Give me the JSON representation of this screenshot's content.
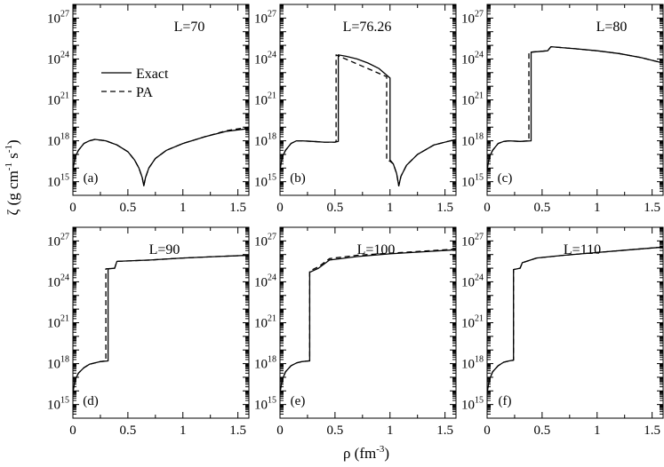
{
  "figure": {
    "ylabel": "ζ (g cm⁻¹ s⁻¹)",
    "xlabel": "ρ (fm⁻³)",
    "ylabel_parts": [
      "ζ (g cm",
      "-1",
      " s",
      "-1",
      ")"
    ],
    "xlabel_parts": [
      "ρ (fm",
      "-3",
      ")"
    ],
    "legend": {
      "entries": [
        "Exact",
        "PA"
      ],
      "placement": "panel (a), upper-left"
    }
  },
  "chart_data": [
    {
      "type": "line",
      "panel": "(a)",
      "title": "L=70",
      "xlim": [
        0,
        1.6
      ],
      "ylim": [
        14,
        28
      ],
      "yscale": "log",
      "xticks": [
        "0",
        "0.5",
        "1",
        "1.5"
      ],
      "yticks": [
        "15",
        "18",
        "21",
        "24",
        "27"
      ],
      "series": [
        {
          "name": "Exact",
          "style": "solid",
          "x": [
            0,
            0.02,
            0.05,
            0.1,
            0.15,
            0.2,
            0.3,
            0.4,
            0.5,
            0.56,
            0.6,
            0.63,
            0.645,
            0.66,
            0.69,
            0.75,
            0.85,
            1.0,
            1.2,
            1.4,
            1.6
          ],
          "log10_y": [
            15.9,
            16.8,
            17.3,
            17.8,
            18.0,
            18.1,
            18.0,
            17.7,
            17.2,
            16.6,
            16.0,
            15.3,
            14.7,
            15.3,
            16.0,
            16.7,
            17.3,
            17.8,
            18.3,
            18.7,
            18.9
          ]
        },
        {
          "name": "PA",
          "style": "dashed",
          "x": [
            0,
            0.02,
            0.05,
            0.1,
            0.15,
            0.2,
            0.3,
            0.4,
            0.5,
            0.56,
            0.6,
            0.63,
            0.645,
            0.66,
            0.69,
            0.75,
            0.85,
            1.0,
            1.2,
            1.4,
            1.6
          ],
          "log10_y": [
            15.9,
            16.8,
            17.3,
            17.8,
            18.0,
            18.1,
            18.0,
            17.7,
            17.2,
            16.6,
            16.0,
            15.3,
            14.7,
            15.3,
            16.0,
            16.7,
            17.3,
            17.8,
            18.3,
            18.75,
            19.0
          ]
        }
      ]
    },
    {
      "type": "line",
      "panel": "(b)",
      "title": "L=76.26",
      "xlim": [
        0,
        1.6
      ],
      "ylim": [
        14,
        28
      ],
      "yscale": "log",
      "xticks": [
        "0",
        "0.5",
        "1",
        "1.5"
      ],
      "yticks": [
        "15",
        "18",
        "21",
        "24",
        "27"
      ],
      "series": [
        {
          "name": "Exact",
          "style": "solid",
          "x": [
            0,
            0.02,
            0.05,
            0.1,
            0.15,
            0.2,
            0.3,
            0.4,
            0.5,
            0.53,
            0.53,
            0.6,
            0.7,
            0.8,
            0.9,
            1.0,
            1.0,
            1.03,
            1.06,
            1.08,
            1.1,
            1.15,
            1.25,
            1.4,
            1.6
          ],
          "log10_y": [
            15.9,
            16.8,
            17.3,
            17.8,
            18.0,
            18.0,
            17.95,
            17.9,
            17.9,
            17.95,
            24.3,
            24.2,
            24.0,
            23.7,
            23.3,
            22.6,
            16.6,
            16.3,
            15.6,
            14.7,
            15.4,
            16.2,
            17.0,
            17.7,
            18.1
          ]
        },
        {
          "name": "PA",
          "style": "dashed",
          "x": [
            0,
            0.02,
            0.05,
            0.1,
            0.15,
            0.2,
            0.3,
            0.4,
            0.5,
            0.51,
            0.51,
            0.97,
            0.97,
            1.0,
            1.03,
            1.06,
            1.08,
            1.1,
            1.15,
            1.25,
            1.4,
            1.6
          ],
          "log10_y": [
            15.9,
            16.8,
            17.3,
            17.8,
            18.0,
            18.0,
            17.95,
            17.9,
            17.9,
            17.95,
            24.3,
            22.7,
            16.6,
            16.5,
            16.3,
            15.6,
            14.7,
            15.4,
            16.2,
            17.0,
            17.7,
            18.1
          ]
        }
      ]
    },
    {
      "type": "line",
      "panel": "(c)",
      "title": "L=80",
      "xlim": [
        0,
        1.6
      ],
      "ylim": [
        14,
        28
      ],
      "yscale": "log",
      "xticks": [
        "0",
        "0.5",
        "1",
        "1.5"
      ],
      "yticks": [
        "15",
        "18",
        "21",
        "24",
        "27"
      ],
      "series": [
        {
          "name": "Exact",
          "style": "solid",
          "x": [
            0,
            0.02,
            0.05,
            0.1,
            0.15,
            0.2,
            0.3,
            0.4,
            0.4,
            0.55,
            0.58,
            0.8,
            1.0,
            1.2,
            1.4,
            1.6
          ],
          "log10_y": [
            15.9,
            16.8,
            17.3,
            17.8,
            17.95,
            18.0,
            17.95,
            18.0,
            24.5,
            24.6,
            24.9,
            24.75,
            24.6,
            24.4,
            24.1,
            23.7
          ]
        },
        {
          "name": "PA",
          "style": "dashed",
          "x": [
            0,
            0.02,
            0.05,
            0.1,
            0.15,
            0.2,
            0.3,
            0.38,
            0.38,
            0.55,
            0.58,
            0.8,
            1.0,
            1.2,
            1.4,
            1.6
          ],
          "log10_y": [
            15.9,
            16.8,
            17.3,
            17.8,
            17.95,
            18.0,
            17.95,
            18.0,
            24.5,
            24.6,
            24.9,
            24.75,
            24.6,
            24.4,
            24.1,
            23.7
          ]
        }
      ]
    },
    {
      "type": "line",
      "panel": "(d)",
      "title": "L=90",
      "xlim": [
        0,
        1.6
      ],
      "ylim": [
        14,
        28
      ],
      "yscale": "log",
      "xticks": [
        "0",
        "0.5",
        "1",
        "1.5"
      ],
      "yticks": [
        "15",
        "18",
        "21",
        "24",
        "27"
      ],
      "series": [
        {
          "name": "Exact",
          "style": "solid",
          "x": [
            0,
            0.02,
            0.05,
            0.1,
            0.15,
            0.2,
            0.25,
            0.32,
            0.32,
            0.38,
            0.4,
            0.7,
            1.0,
            1.3,
            1.6
          ],
          "log10_y": [
            15.9,
            16.8,
            17.3,
            17.7,
            17.95,
            18.05,
            18.15,
            18.2,
            24.95,
            25.0,
            25.5,
            25.6,
            25.75,
            25.85,
            25.95
          ]
        },
        {
          "name": "PA",
          "style": "dashed",
          "x": [
            0,
            0.02,
            0.05,
            0.1,
            0.15,
            0.2,
            0.25,
            0.3,
            0.3,
            0.38,
            0.4,
            0.7,
            1.0,
            1.3,
            1.6
          ],
          "log10_y": [
            15.9,
            16.8,
            17.3,
            17.7,
            17.95,
            18.05,
            18.15,
            18.2,
            24.95,
            25.0,
            25.5,
            25.6,
            25.75,
            25.85,
            25.95
          ]
        }
      ]
    },
    {
      "type": "line",
      "panel": "(e)",
      "title": "L=100",
      "xlim": [
        0,
        1.6
      ],
      "ylim": [
        14,
        28
      ],
      "yscale": "log",
      "xticks": [
        "0",
        "0.5",
        "1",
        "1.5"
      ],
      "yticks": [
        "15",
        "18",
        "21",
        "24",
        "27"
      ],
      "series": [
        {
          "name": "Exact",
          "style": "solid",
          "x": [
            0,
            0.02,
            0.05,
            0.1,
            0.15,
            0.2,
            0.26,
            0.27,
            0.27,
            0.35,
            0.45,
            0.7,
            1.0,
            1.3,
            1.6
          ],
          "log10_y": [
            15.9,
            16.8,
            17.4,
            17.85,
            18.05,
            18.15,
            18.2,
            18.2,
            24.7,
            25.0,
            25.6,
            25.85,
            26.05,
            26.2,
            26.35
          ]
        },
        {
          "name": "PA",
          "style": "dashed",
          "x": [
            0,
            0.02,
            0.05,
            0.1,
            0.15,
            0.2,
            0.26,
            0.27,
            0.27,
            0.35,
            0.45,
            0.7,
            1.0,
            1.3,
            1.6
          ],
          "log10_y": [
            15.9,
            16.8,
            17.4,
            17.85,
            18.05,
            18.15,
            18.2,
            18.2,
            24.8,
            25.1,
            25.7,
            25.95,
            26.1,
            26.25,
            26.4
          ]
        }
      ]
    },
    {
      "type": "line",
      "panel": "(f)",
      "title": "L=110",
      "xlim": [
        0,
        1.6
      ],
      "ylim": [
        14,
        28
      ],
      "yscale": "log",
      "xticks": [
        "0",
        "0.5",
        "1",
        "1.5"
      ],
      "yticks": [
        "15",
        "18",
        "21",
        "24",
        "27"
      ],
      "series": [
        {
          "name": "Exact",
          "style": "solid",
          "x": [
            0,
            0.02,
            0.05,
            0.1,
            0.15,
            0.2,
            0.24,
            0.24,
            0.3,
            0.32,
            0.45,
            0.7,
            1.0,
            1.3,
            1.6
          ],
          "log10_y": [
            15.9,
            16.8,
            17.4,
            17.85,
            18.1,
            18.2,
            18.25,
            24.9,
            25.0,
            25.4,
            25.75,
            25.95,
            26.15,
            26.35,
            26.55
          ]
        },
        {
          "name": "PA",
          "style": "dashed",
          "x": [
            0,
            0.02,
            0.05,
            0.1,
            0.15,
            0.2,
            0.24,
            0.24,
            0.3,
            0.32,
            0.45,
            0.7,
            1.0,
            1.3,
            1.6
          ],
          "log10_y": [
            15.9,
            16.8,
            17.4,
            17.85,
            18.1,
            18.2,
            18.25,
            24.9,
            25.0,
            25.4,
            25.75,
            25.95,
            26.15,
            26.35,
            26.55
          ]
        }
      ]
    }
  ]
}
